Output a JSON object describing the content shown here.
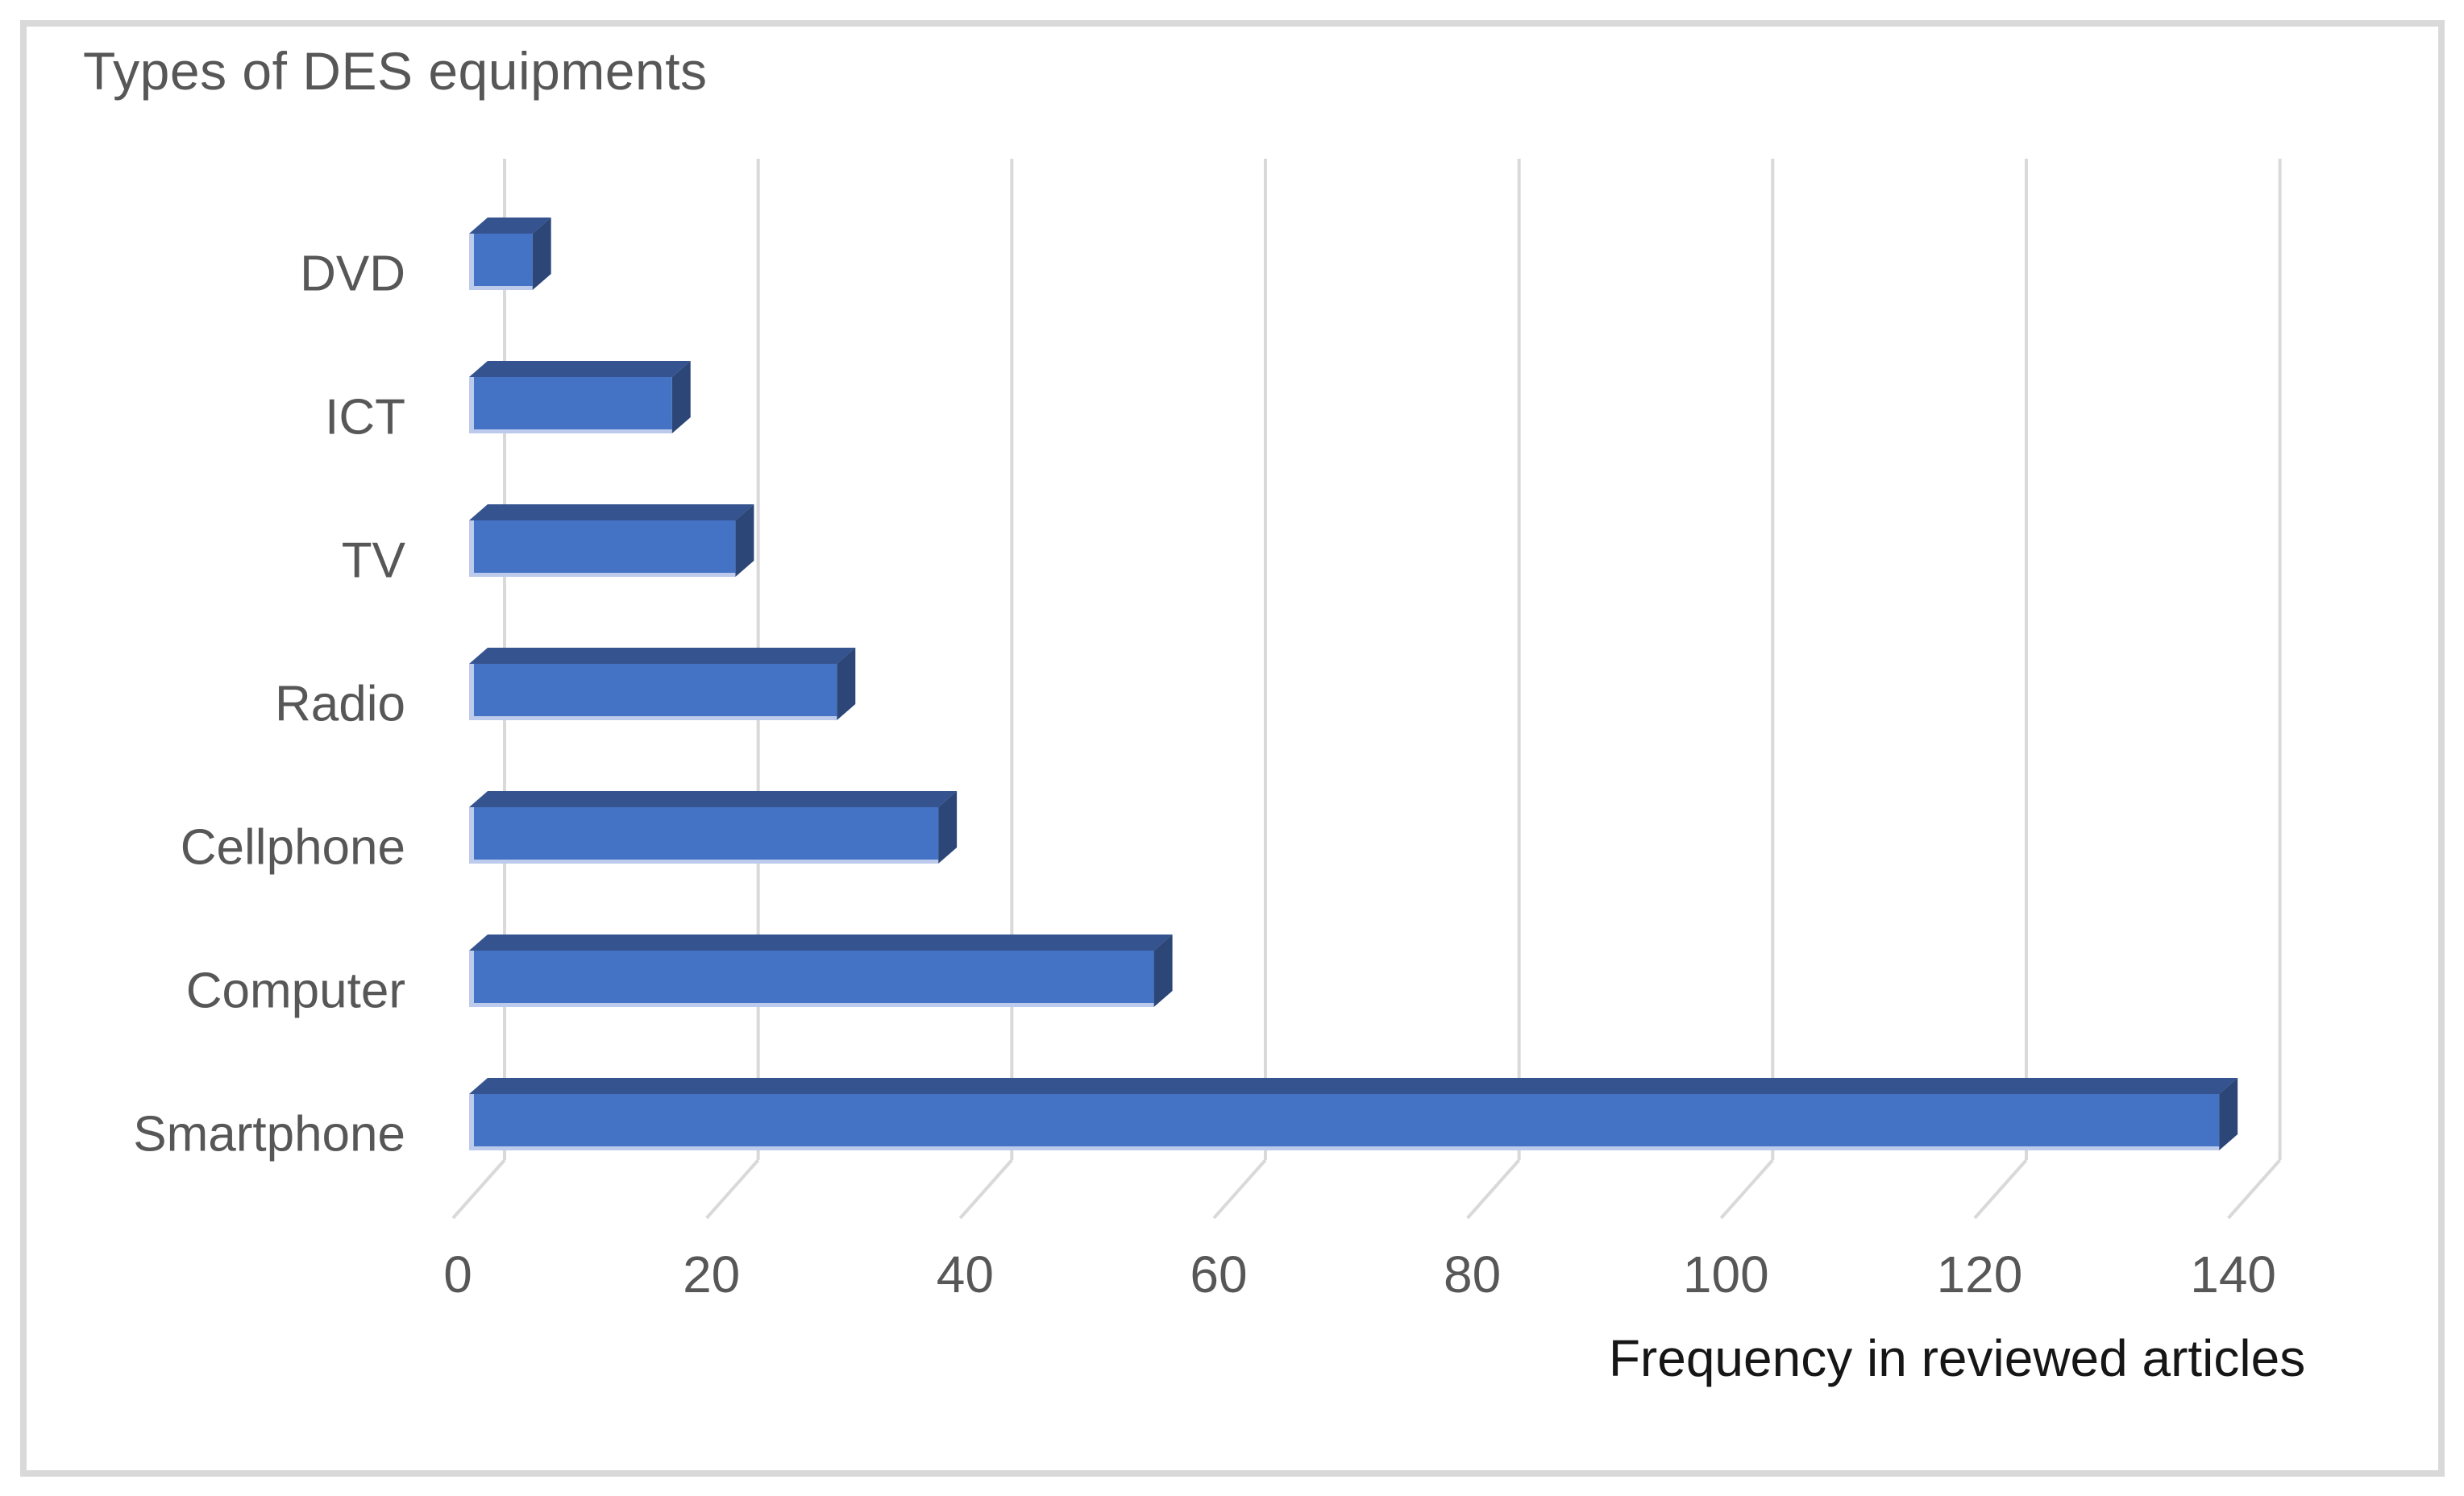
{
  "chart_data": {
    "type": "bar",
    "orientation": "horizontal",
    "style": "3d",
    "title": "Types of DES equipments",
    "xlabel": "Frequency in reviewed articles",
    "ylabel": "",
    "categories": [
      "DVD",
      "ICT",
      "TV",
      "Radio",
      "Cellphone",
      "Computer",
      "Smartphone"
    ],
    "values": [
      5,
      16,
      21,
      29,
      37,
      54,
      138
    ],
    "x_ticks": [
      0,
      20,
      40,
      60,
      80,
      100,
      120,
      140
    ],
    "xlim": [
      0,
      153
    ],
    "grid": true,
    "legend": "none",
    "colors": {
      "bar_front": "#4472c4",
      "bar_top": "#35548f",
      "bar_side": "#2b4677",
      "bar_highlight": "#bccbec",
      "gridline": "#d9d9d9",
      "frame_border": "#d9d9d9",
      "title_text": "#575757",
      "label_text": "#575757",
      "axis_title_text": "#161616",
      "background": "#ffffff"
    }
  }
}
